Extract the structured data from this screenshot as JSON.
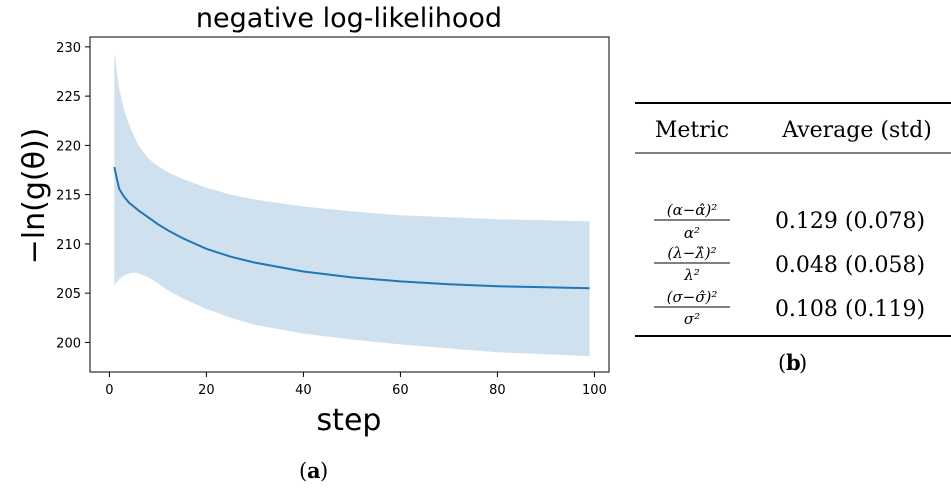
{
  "chart_data": {
    "type": "line",
    "title": "negative log-likelihood",
    "xlabel": "step",
    "ylabel": "−ln(g(θ))",
    "xlim": [
      -4,
      103
    ],
    "ylim": [
      197,
      231
    ],
    "xticks": [
      0,
      20,
      40,
      60,
      80,
      100
    ],
    "yticks": [
      200,
      205,
      210,
      215,
      220,
      225,
      230
    ],
    "grid": false,
    "series": [
      {
        "color": "#1f77b4",
        "band_color": "#cfe0ef",
        "x": [
          1,
          2,
          3,
          4,
          5,
          6,
          8,
          10,
          12,
          15,
          20,
          25,
          30,
          40,
          50,
          60,
          70,
          80,
          90,
          99
        ],
        "mean": [
          217.8,
          215.6,
          214.8,
          214.2,
          213.8,
          213.4,
          212.7,
          212.0,
          211.4,
          210.6,
          209.5,
          208.7,
          208.1,
          207.2,
          206.6,
          206.2,
          205.9,
          205.7,
          205.6,
          205.5
        ],
        "upper": [
          229.5,
          225.8,
          223.6,
          222.2,
          221.0,
          220.0,
          218.7,
          217.9,
          217.3,
          216.6,
          215.7,
          215.0,
          214.5,
          213.8,
          213.3,
          212.9,
          212.7,
          212.5,
          212.4,
          212.3
        ],
        "lower": [
          205.8,
          206.4,
          206.8,
          207.0,
          207.1,
          207.0,
          206.6,
          206.0,
          205.3,
          204.5,
          203.4,
          202.5,
          201.8,
          200.9,
          200.3,
          199.8,
          199.4,
          199.0,
          198.8,
          198.6
        ]
      }
    ]
  },
  "captions": {
    "a": "a",
    "b": "b"
  },
  "table": {
    "headers": [
      "Metric",
      "Average (std)"
    ],
    "rows": [
      {
        "metric": "(α−α̂)²/α²",
        "value": "0.129 (0.078)"
      },
      {
        "metric": "(λ−λ̂)²/λ²",
        "value": "0.048 (0.058)"
      },
      {
        "metric": "(σ−σ̂)²/σ²",
        "value": "0.108 (0.119)"
      }
    ]
  }
}
